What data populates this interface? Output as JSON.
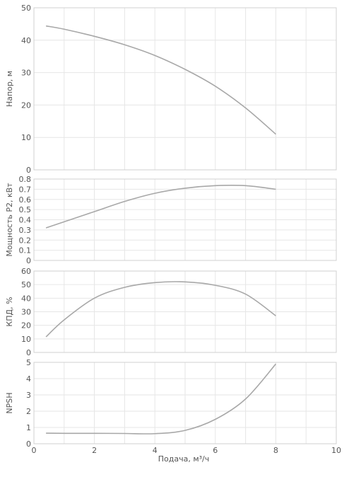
{
  "chart_data": [
    {
      "type": "line",
      "ylabel": "Напор, м",
      "ylim": [
        0,
        50
      ],
      "yticks": [
        0,
        10,
        20,
        30,
        40,
        50
      ],
      "xlim": [
        0,
        10
      ],
      "grid": true,
      "series": [
        {
          "x": [
            0.4,
            1,
            2,
            3,
            4,
            5,
            6,
            7,
            8
          ],
          "values": [
            44.4,
            43.4,
            41.2,
            38.6,
            35.3,
            31.0,
            25.8,
            19.1,
            11.0
          ]
        }
      ]
    },
    {
      "type": "line",
      "ylabel": "Мощность P2, кВт",
      "ylim": [
        0,
        0.8
      ],
      "yticks": [
        0,
        0.1,
        0.2,
        0.3,
        0.4,
        0.5,
        0.6,
        0.7,
        0.8
      ],
      "xlim": [
        0,
        10
      ],
      "grid": true,
      "series": [
        {
          "x": [
            0.4,
            1,
            2,
            3,
            4,
            5,
            6,
            7,
            8
          ],
          "values": [
            0.32,
            0.38,
            0.48,
            0.58,
            0.66,
            0.71,
            0.735,
            0.735,
            0.7
          ]
        }
      ]
    },
    {
      "type": "line",
      "ylabel": "КПД, %",
      "ylim": [
        0,
        60
      ],
      "yticks": [
        0,
        10,
        20,
        30,
        40,
        50,
        60
      ],
      "xlim": [
        0,
        10
      ],
      "grid": true,
      "series": [
        {
          "x": [
            0.4,
            1,
            2,
            3,
            4,
            5,
            6,
            7,
            8
          ],
          "values": [
            11.5,
            24,
            40,
            48,
            51.5,
            52,
            49.5,
            43,
            27
          ]
        }
      ]
    },
    {
      "type": "line",
      "ylabel": "NPSH",
      "xlabel": "Подача, м³/ч",
      "ylim": [
        0,
        5
      ],
      "yticks": [
        0,
        1,
        2,
        3,
        4,
        5
      ],
      "xlim": [
        0,
        10
      ],
      "xticks": [
        0,
        2,
        4,
        6,
        8,
        10
      ],
      "grid": true,
      "series": [
        {
          "x": [
            0.4,
            1,
            2,
            3,
            4,
            5,
            6,
            7,
            8
          ],
          "values": [
            0.65,
            0.64,
            0.64,
            0.63,
            0.62,
            0.82,
            1.5,
            2.75,
            4.9
          ]
        }
      ]
    }
  ],
  "colors": {
    "curve": "#a8a8a8",
    "grid": "#e6e6e6",
    "frame": "#d0d0d0",
    "text": "#555555"
  }
}
